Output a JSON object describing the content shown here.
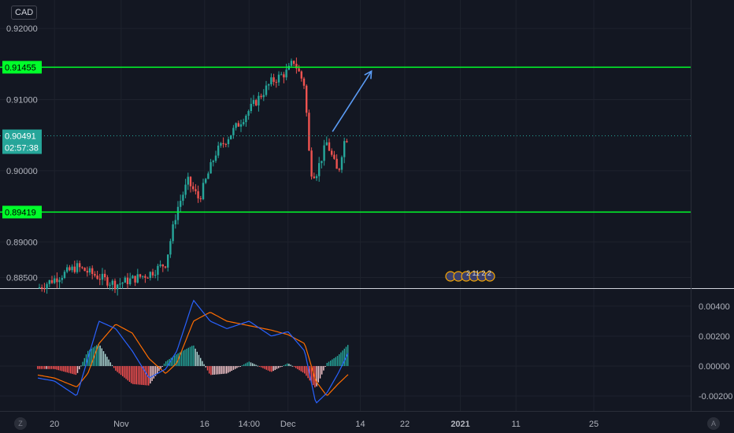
{
  "currency": "CAD",
  "colors": {
    "background": "#131722",
    "grid": "#1e222d",
    "up": "#26a69a",
    "down": "#ef5350",
    "level_line": "#00ff2a",
    "level_label_bg": "#00ff2a",
    "arrow": "#5b9cf6",
    "macd_line": "#2962ff",
    "signal_line": "#ff6d00",
    "price_label_bg": "#26a69a"
  },
  "price_axis_labels": [
    "0.92000",
    "0.91000",
    "0.90000",
    "0.89000",
    "0.88500"
  ],
  "indicator_axis_labels": [
    "0.00400",
    "0.00200",
    "0.00000",
    "-0.00200"
  ],
  "time_axis_labels": [
    "20",
    "Nov",
    "16",
    "14:00",
    "Dec",
    "14",
    "22",
    "2021",
    "11",
    "25"
  ],
  "corner_left": "Z",
  "corner_right": "A",
  "current_price": "0.90491",
  "countdown": "02:57:38",
  "events_text": "2 11 2 2",
  "chart_data": {
    "type": "candlestick",
    "ylim": [
      0.8835,
      0.924
    ],
    "indicator_ylim": [
      -0.003,
      0.0051
    ],
    "horizontal_levels": [
      {
        "label": "0.91455",
        "value": 0.91455
      },
      {
        "label": "0.89419",
        "value": 0.89419
      }
    ],
    "current_price": 0.90491,
    "arrow": {
      "from": {
        "x": "Dec 9",
        "y": 0.9055
      },
      "to": {
        "x": "Dec 16",
        "y": 0.914
      }
    },
    "price_segments": [
      {
        "x": "Oct 17",
        "y": 0.8835
      },
      {
        "x": "Oct 24",
        "y": 0.8865
      },
      {
        "x": "Oct 31",
        "y": 0.884
      },
      {
        "x": "Nov 6",
        "y": 0.8855
      },
      {
        "x": "Nov 9",
        "y": 0.887
      },
      {
        "x": "Nov 11",
        "y": 0.8945
      },
      {
        "x": "Nov 13",
        "y": 0.8985
      },
      {
        "x": "Nov 15",
        "y": 0.896
      },
      {
        "x": "Nov 18",
        "y": 0.9025
      },
      {
        "x": "Nov 22",
        "y": 0.9065
      },
      {
        "x": "Nov 25",
        "y": 0.9095
      },
      {
        "x": "Nov 28",
        "y": 0.9125
      },
      {
        "x": "Dec 1",
        "y": 0.914
      },
      {
        "x": "Dec 2",
        "y": 0.9155
      },
      {
        "x": "Dec 4",
        "y": 0.912
      },
      {
        "x": "Dec 5",
        "y": 0.9
      },
      {
        "x": "Dec 6",
        "y": 0.8995
      },
      {
        "x": "Dec 8",
        "y": 0.904
      },
      {
        "x": "Dec 10",
        "y": 0.8995
      },
      {
        "x": "Dec 11",
        "y": 0.904
      },
      {
        "x": "Dec 12",
        "y": 0.905
      }
    ],
    "macd": [
      {
        "x": "Oct 17",
        "macd": -0.0008,
        "signal": -0.0006
      },
      {
        "x": "Oct 20",
        "macd": -0.001,
        "signal": -0.0008
      },
      {
        "x": "Oct 24",
        "macd": -0.002,
        "signal": -0.0014
      },
      {
        "x": "Oct 26",
        "macd": 0.0005,
        "signal": -0.0005
      },
      {
        "x": "Oct 28",
        "macd": 0.003,
        "signal": 0.0015
      },
      {
        "x": "Oct 31",
        "macd": 0.0025,
        "signal": 0.0028
      },
      {
        "x": "Nov 3",
        "macd": 0.001,
        "signal": 0.0022
      },
      {
        "x": "Nov 6",
        "macd": -0.0008,
        "signal": 0.0005
      },
      {
        "x": "Nov 9",
        "macd": -0.0002,
        "signal": -0.0005
      },
      {
        "x": "Nov 11",
        "macd": 0.001,
        "signal": 0.0002
      },
      {
        "x": "Nov 14",
        "macd": 0.0044,
        "signal": 0.003
      },
      {
        "x": "Nov 17",
        "macd": 0.003,
        "signal": 0.0036
      },
      {
        "x": "Nov 20",
        "macd": 0.0025,
        "signal": 0.003
      },
      {
        "x": "Nov 24",
        "macd": 0.003,
        "signal": 0.0027
      },
      {
        "x": "Nov 28",
        "macd": 0.002,
        "signal": 0.0024
      },
      {
        "x": "Dec 1",
        "macd": 0.0023,
        "signal": 0.0021
      },
      {
        "x": "Dec 4",
        "macd": 0.001,
        "signal": 0.0015
      },
      {
        "x": "Dec 6",
        "macd": -0.0025,
        "signal": -0.001
      },
      {
        "x": "Dec 8",
        "macd": -0.0018,
        "signal": -0.002
      },
      {
        "x": "Dec 10",
        "macd": -0.0005,
        "signal": -0.0012
      },
      {
        "x": "Dec 12",
        "macd": 0.001,
        "signal": -0.0005
      }
    ]
  }
}
